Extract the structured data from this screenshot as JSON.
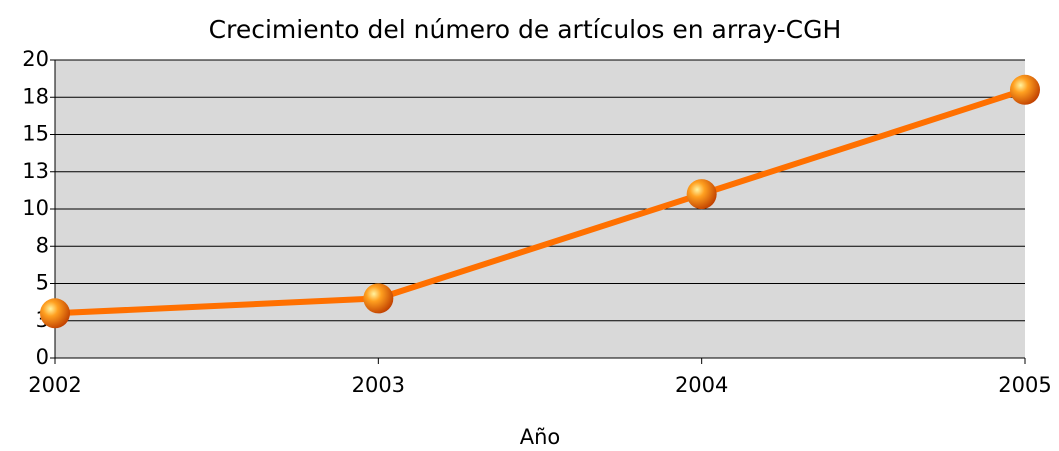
{
  "chart_data": {
    "type": "line",
    "title": "Crecimiento del número de artículos en array-CGH",
    "x_label": "Año",
    "x": [
      2002,
      2003,
      2004,
      2005
    ],
    "values": [
      3,
      4,
      11,
      18
    ],
    "color": "#ff7000",
    "xlim": [
      2002,
      2005
    ],
    "xticks": [
      2002,
      2003,
      2004,
      2005
    ],
    "ylim": [
      0,
      20
    ],
    "yticks": [
      0,
      {
        "value": 2.5,
        "label": "3"
      },
      5,
      {
        "value": 7.5,
        "label": "8"
      },
      10,
      {
        "value": 12.5,
        "label": "13"
      },
      15,
      {
        "value": 17.5,
        "label": "18"
      },
      20
    ],
    "grid": true
  }
}
